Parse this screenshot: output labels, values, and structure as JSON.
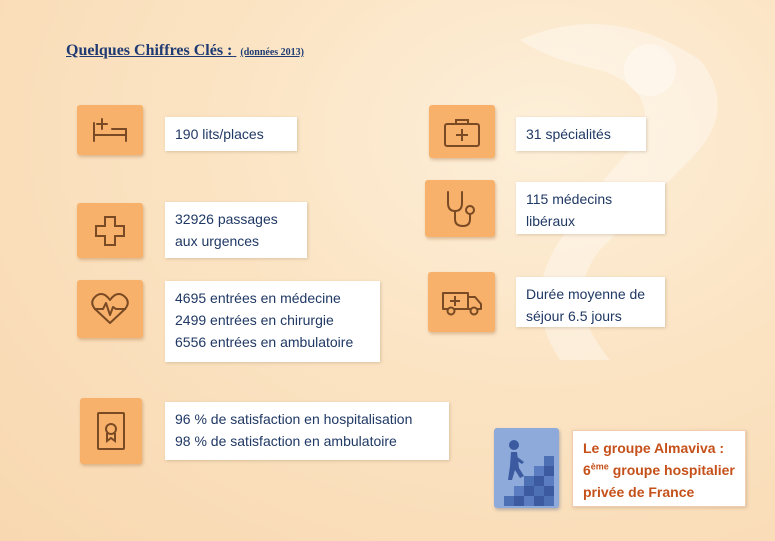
{
  "title": {
    "main": "Quelques Chiffres Clés :",
    "sub": "(données 2013)"
  },
  "stats": [
    {
      "icon": "hospital-bed-icon",
      "lines": [
        "190 lits/places"
      ]
    },
    {
      "icon": "medical-cross-icon",
      "lines": [
        "32926 passages",
        "aux urgences"
      ]
    },
    {
      "icon": "heartbeat-icon",
      "lines": [
        "4695 entrées en médecine",
        "2499 entrées en chirurgie",
        "6556 entrées en ambulatoire"
      ]
    },
    {
      "icon": "certificate-icon",
      "lines": [
        "96 % de satisfaction en hospitalisation",
        "98 % de satisfaction en ambulatoire"
      ]
    },
    {
      "icon": "medical-kit-icon",
      "lines": [
        "31 spécialités"
      ]
    },
    {
      "icon": "stethoscope-icon",
      "lines": [
        "115 médecins",
        "libéraux"
      ]
    },
    {
      "icon": "ambulance-icon",
      "lines": [
        "Durée moyenne de",
        "séjour 6.5 jours"
      ]
    }
  ],
  "group": {
    "icon": "climbing-puzzle-icon",
    "line1": "Le groupe Almaviva :",
    "line2_rank": "6",
    "line2_sup": "ème",
    "line2_rest": " groupe hospitalier",
    "line3": "privée de France"
  },
  "colors": {
    "background": "#fbe3c2",
    "icon_tile": "#f7b16b",
    "icon_stroke": "#7a4a24",
    "text_blue": "#1f3864",
    "group_tile": "#8eaadb",
    "group_text": "#c5501a"
  }
}
